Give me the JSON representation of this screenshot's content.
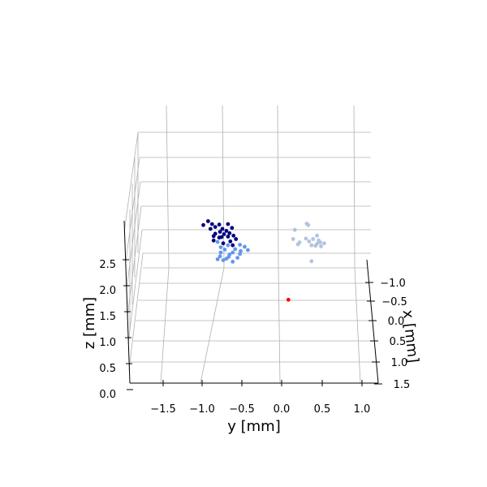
{
  "chart_data": {
    "type": "scatter",
    "title": "",
    "xlabel": "x [mm]",
    "ylabel": "y [mm]",
    "zlabel": "z [mm]",
    "grid": true,
    "legend": "none",
    "y_ticks": [
      "−1.5",
      "−1.0",
      "−0.5",
      "0.0",
      "0.5",
      "1.0"
    ],
    "x_ticks": [
      "−1.0",
      "−0.5",
      "0.0",
      "0.5",
      "1.0",
      "1.5"
    ],
    "z_ticks": [
      "0.0",
      "0.5",
      "1.0",
      "1.5",
      "2.0",
      "2.5"
    ],
    "y_range": [
      -1.85,
      1.15
    ],
    "z_range": [
      0.0,
      3.2
    ],
    "series": [
      {
        "color": "#00007f",
        "points": [
          {
            "y": -1.03,
            "z": 3.36
          },
          {
            "y": -0.98,
            "z": 3.3
          },
          {
            "y": -1.09,
            "z": 3.28
          },
          {
            "y": -0.89,
            "z": 3.29
          },
          {
            "y": -0.78,
            "z": 3.3
          },
          {
            "y": -0.94,
            "z": 3.24
          },
          {
            "y": -0.85,
            "z": 3.2
          },
          {
            "y": -0.73,
            "z": 3.22
          },
          {
            "y": -1.0,
            "z": 3.2
          },
          {
            "y": -0.88,
            "z": 3.14
          },
          {
            "y": -0.83,
            "z": 3.09
          },
          {
            "y": -0.94,
            "z": 3.1
          },
          {
            "y": -0.78,
            "z": 3.04
          },
          {
            "y": -0.71,
            "z": 3.06
          },
          {
            "y": -0.89,
            "z": 3.02
          },
          {
            "y": -0.96,
            "z": 3.05
          },
          {
            "y": -0.8,
            "z": 3.16
          },
          {
            "y": -0.76,
            "z": 3.11
          },
          {
            "y": -0.86,
            "z": 3.03
          },
          {
            "y": -0.68,
            "z": 2.99
          },
          {
            "y": -0.75,
            "z": 2.94
          },
          {
            "y": -0.96,
            "z": 2.96
          },
          {
            "y": -0.84,
            "z": 2.9
          },
          {
            "y": -0.72,
            "z": 2.86
          }
        ]
      },
      {
        "color": "#6495ed",
        "points": [
          {
            "y": -0.91,
            "z": 2.93
          },
          {
            "y": -0.63,
            "z": 2.87
          },
          {
            "y": -0.57,
            "z": 2.83
          },
          {
            "y": -0.78,
            "z": 2.86
          },
          {
            "y": -0.69,
            "z": 2.78
          },
          {
            "y": -0.82,
            "z": 2.77
          },
          {
            "y": -0.72,
            "z": 2.71
          },
          {
            "y": -0.63,
            "z": 2.68
          },
          {
            "y": -0.87,
            "z": 2.71
          },
          {
            "y": -0.76,
            "z": 2.67
          },
          {
            "y": -0.88,
            "z": 2.63
          },
          {
            "y": -0.8,
            "z": 2.58
          },
          {
            "y": -0.66,
            "z": 2.6
          },
          {
            "y": -0.72,
            "z": 2.52
          },
          {
            "y": -0.84,
            "z": 2.55
          },
          {
            "y": -0.53,
            "z": 2.76
          },
          {
            "y": -0.91,
            "z": 2.57
          },
          {
            "y": -0.77,
            "z": 2.62
          },
          {
            "y": -0.62,
            "z": 2.74
          },
          {
            "y": -0.87,
            "z": 2.82
          }
        ]
      },
      {
        "color": "#b0c4de",
        "points": [
          {
            "y": 0.21,
            "z": 3.31
          },
          {
            "y": 0.23,
            "z": 3.28
          },
          {
            "y": 0.06,
            "z": 3.18
          },
          {
            "y": 0.34,
            "z": 3.06
          },
          {
            "y": 0.04,
            "z": 2.99
          },
          {
            "y": 0.2,
            "z": 3.0
          },
          {
            "y": 0.29,
            "z": 2.99
          },
          {
            "y": 0.38,
            "z": 2.92
          },
          {
            "y": 0.36,
            "z": 2.96
          },
          {
            "y": 0.43,
            "z": 2.9
          },
          {
            "y": 0.27,
            "z": 2.86
          },
          {
            "y": 0.32,
            "z": 2.85
          },
          {
            "y": 0.12,
            "z": 2.92
          },
          {
            "y": 0.39,
            "z": 2.84
          },
          {
            "y": 0.24,
            "z": 2.94
          },
          {
            "y": 0.34,
            "z": 2.89
          },
          {
            "y": 0.1,
            "z": 2.88
          },
          {
            "y": 0.27,
            "z": 2.53
          }
        ]
      },
      {
        "color": "#ff0000",
        "points": [
          {
            "y": -0.02,
            "z": 1.73
          }
        ]
      }
    ]
  }
}
